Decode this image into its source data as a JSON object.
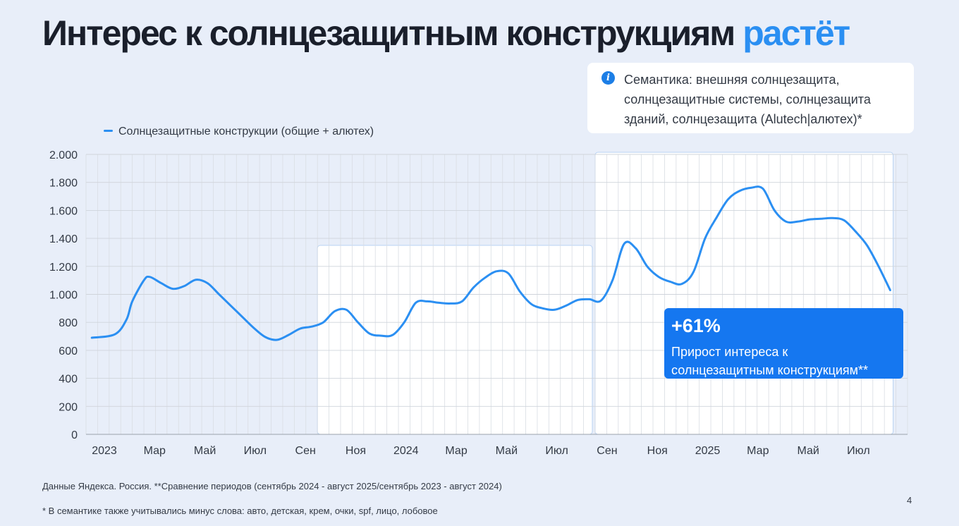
{
  "title": {
    "main": "Интерес к солнцезащитным конструкциям",
    "accent": "растёт"
  },
  "info_box": {
    "icon": "info-icon",
    "text": "Семантика: внешняя солнцезащита,\nсолнцезащитные системы, солнцезащита\nзданий, солнцезащита (Alutech|алютех)*"
  },
  "callout": {
    "value": "+61%",
    "text": "Прирост интереса к\nсолнцезащитным конструкциям**"
  },
  "footnotes": {
    "source": "Данные Яндекса. Россия. **Сравнение периодов (сентябрь 2024 - август 2025/сентябрь 2023 - август 2024)",
    "semantics": "* В семантике также учитывались минус слова: авто, детская, крем, очки, spf, лицо, лобовое"
  },
  "page_number": "4",
  "colors": {
    "line": "#2b8ff2",
    "accent": "#2b8ff2",
    "callout_bg": "#1577f0",
    "grid": "#dcdfe4",
    "background": "#e8eef9"
  },
  "chart_data": {
    "type": "line",
    "title": "",
    "xlabel": "",
    "ylabel": "",
    "ylim": [
      0,
      2000
    ],
    "y_ticks": [
      0,
      200,
      400,
      600,
      800,
      1000,
      1200,
      1400,
      1600,
      1800,
      2000
    ],
    "y_tick_labels": [
      "0",
      "200",
      "400",
      "600",
      "800",
      "1.000",
      "1.200",
      "1.400",
      "1.600",
      "1.800",
      "2.000"
    ],
    "x_tick_labels": [
      "2023",
      "Мар",
      "Май",
      "Июл",
      "Сен",
      "Ноя",
      "2024",
      "Мар",
      "Май",
      "Июл",
      "Сен",
      "Ноя",
      "2025",
      "Мар",
      "Май",
      "Июл"
    ],
    "grid": true,
    "legend_position": "top-left",
    "highlighted_periods": [
      {
        "from_week": 40,
        "to_week": 87
      },
      {
        "from_week": 88,
        "to_week": 139
      }
    ],
    "series": [
      {
        "name": "Солнцезащитные конструкции (общие + алютех)",
        "x_weeks": [
          0,
          4,
          6,
          7,
          9,
          10,
          12,
          14,
          16,
          18,
          20,
          22,
          24,
          26,
          28,
          30,
          32,
          34,
          36,
          38,
          40,
          42,
          44,
          46,
          48,
          50,
          52,
          54,
          56,
          58,
          60,
          62,
          64,
          66,
          68,
          70,
          72,
          74,
          76,
          78,
          80,
          82,
          84,
          86,
          88,
          90,
          92,
          94,
          96,
          98,
          100,
          102,
          104,
          106,
          108,
          110,
          112,
          114,
          116,
          118,
          120,
          122,
          124,
          126,
          128,
          130,
          132,
          134,
          136,
          138
        ],
        "values": [
          690,
          715,
          820,
          950,
          1100,
          1125,
          1080,
          1040,
          1060,
          1105,
          1080,
          1000,
          920,
          840,
          760,
          695,
          675,
          710,
          755,
          770,
          800,
          880,
          890,
          800,
          720,
          705,
          710,
          800,
          940,
          950,
          940,
          935,
          950,
          1050,
          1120,
          1165,
          1150,
          1020,
          930,
          900,
          890,
          920,
          960,
          965,
          955,
          1100,
          1360,
          1330,
          1200,
          1125,
          1090,
          1075,
          1160,
          1400,
          1550,
          1680,
          1740,
          1762,
          1755,
          1600,
          1520,
          1520,
          1535,
          1540,
          1545,
          1530,
          1450,
          1350,
          1200,
          1030
        ]
      }
    ]
  }
}
